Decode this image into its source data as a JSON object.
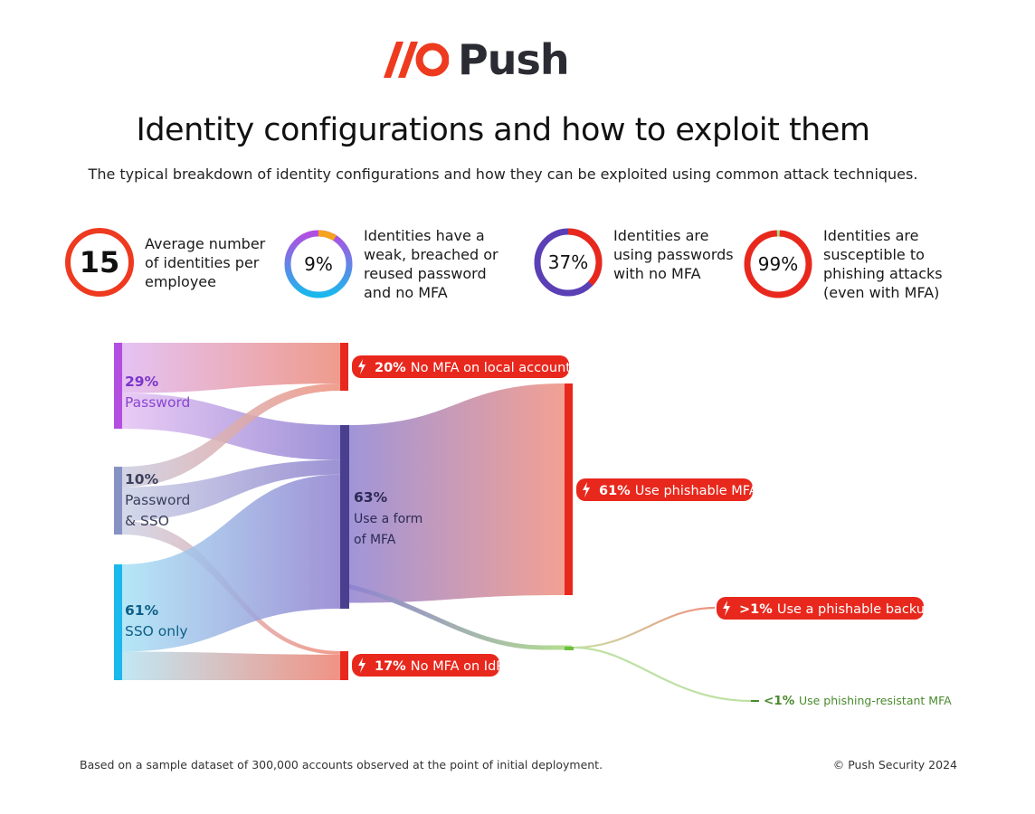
{
  "brand": {
    "name": "Push",
    "accent": "#ee3a1f",
    "dark": "#2b2b33"
  },
  "title": "Identity configurations and how to exploit them",
  "subtitle": "The typical breakdown of identity configurations and how they can be exploited using common attack techniques.",
  "stats": [
    {
      "value": "15",
      "text": [
        "Average number",
        "of identities per",
        "employee"
      ]
    },
    {
      "value": "9%",
      "text": [
        "Identities have a",
        "weak, breached or",
        "reused password",
        "and no MFA"
      ]
    },
    {
      "value": "37%",
      "text": [
        "Identities are",
        "using passwords",
        "with no MFA"
      ]
    },
    {
      "value": "99%",
      "text": [
        "Identities are",
        "susceptible to",
        "phishing attacks",
        "(even with MFA)"
      ]
    }
  ],
  "chart_data": {
    "type": "sankey",
    "title": "Identity configurations and how to exploit them",
    "sources": [
      {
        "id": "password",
        "pct": "29%",
        "label": [
          "Password"
        ],
        "value": 29,
        "color": "#b24ee0"
      },
      {
        "id": "pw_sso",
        "pct": "10%",
        "label": [
          "Password",
          "& SSO"
        ],
        "value": 10,
        "color": "#8792c4"
      },
      {
        "id": "sso",
        "pct": "61%",
        "label": [
          "SSO only"
        ],
        "value": 61,
        "color": "#1ab8ec"
      }
    ],
    "middle": {
      "id": "mfa",
      "pct": "63%",
      "label": [
        "Use a form",
        "of MFA"
      ],
      "value": 63,
      "color": "#4a3f8e"
    },
    "outcomes": [
      {
        "id": "local",
        "pct": "20%",
        "label": "No MFA on local account",
        "value": 20,
        "exploit": true
      },
      {
        "id": "phishable",
        "pct": "61%",
        "label": "Use phishable MFA",
        "value": 61,
        "exploit": true
      },
      {
        "id": "idp",
        "pct": "17%",
        "label": "No MFA on IdP",
        "value": 17,
        "exploit": true
      },
      {
        "id": "backup",
        "pct": ">1%",
        "label": "Use a phishable backup",
        "value": 1,
        "exploit": true
      },
      {
        "id": "resistant",
        "pct": "<1%",
        "label": "Use phishing-resistant MFA",
        "value": 1,
        "exploit": false
      }
    ],
    "links": [
      {
        "source": "password",
        "target": "local",
        "value": 17
      },
      {
        "source": "password",
        "target": "mfa",
        "value": 12
      },
      {
        "source": "pw_sso",
        "target": "local",
        "value": 3
      },
      {
        "source": "pw_sso",
        "target": "mfa",
        "value": 5
      },
      {
        "source": "pw_sso",
        "target": "idp",
        "value": 2
      },
      {
        "source": "sso",
        "target": "mfa",
        "value": 46
      },
      {
        "source": "sso",
        "target": "idp",
        "value": 15
      },
      {
        "source": "mfa",
        "target": "phishable",
        "value": 61
      },
      {
        "source": "mfa",
        "target": "backup",
        "value": 1
      },
      {
        "source": "mfa",
        "target": "resistant",
        "value": 1
      }
    ],
    "colors": {
      "exploit": "#e8281d",
      "resistant": "#4a8a2e",
      "resistant_line": "#bfe0a3"
    }
  },
  "footer": {
    "left": "Based on a sample dataset of 300,000 accounts observed at the point of initial deployment.",
    "right": "© Push Security 2024"
  }
}
